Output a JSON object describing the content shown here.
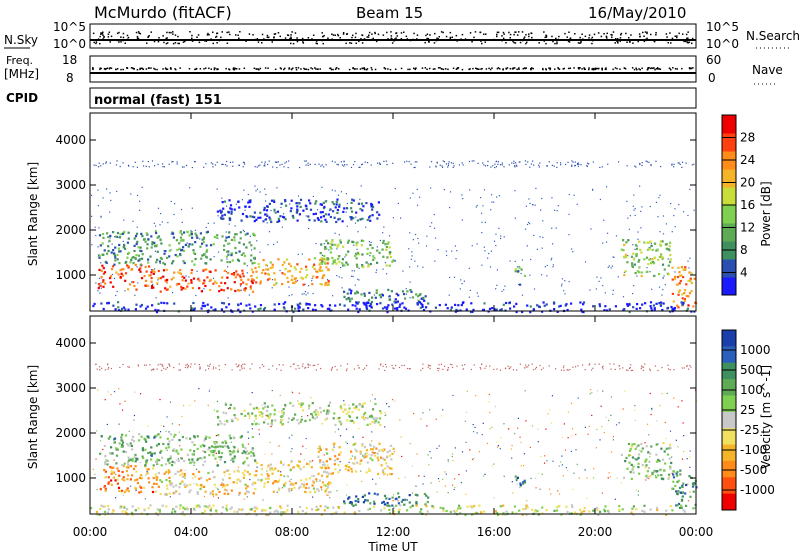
{
  "header": {
    "station": "McMurdo (fitACF)",
    "beam": "Beam 15",
    "date": "16/May/2010"
  },
  "noise_panel": {
    "left_label": "N.Sky",
    "left_ticks": [
      "10^5",
      "10^0"
    ],
    "right_ticks": [
      "10^5",
      "10^0"
    ],
    "right_label": "N.Search"
  },
  "freq_panel": {
    "left_label_1": "Freq.",
    "left_label_2": "[MHz]",
    "left_ticks": [
      "18",
      "8"
    ],
    "right_ticks": [
      "60",
      "0"
    ],
    "right_label": "Nave"
  },
  "cpid_panel": {
    "label": "CPID",
    "value": "normal (fast) 151"
  },
  "chart_data": [
    {
      "type": "heatmap",
      "parameter": "Power",
      "ylabel": "Slant Range [km]",
      "ylim": [
        200,
        4600
      ],
      "yticks": [
        1000,
        2000,
        3000,
        4000
      ],
      "xlim": [
        "00:00",
        "24:00"
      ],
      "colorbar": {
        "label": "Power [dB]",
        "tick_labels": [
          "4",
          "8",
          "12",
          "16",
          "20",
          "24",
          "28"
        ],
        "range": [
          0,
          32
        ],
        "colors": [
          "#1a1aff",
          "#2a4fb0",
          "#3f8f5f",
          "#5faa55",
          "#7fd050",
          "#c8dc3a",
          "#f4b428",
          "#ff8c1a",
          "#ff4010",
          "#ee0000"
        ]
      },
      "regions": [
        {
          "t_start": 0.3,
          "t_end": 2.5,
          "range_lo": 700,
          "range_hi": 1250,
          "level": 0.85
        },
        {
          "t_start": 2.5,
          "t_end": 6.5,
          "range_lo": 650,
          "range_hi": 1150,
          "level": 0.8
        },
        {
          "t_start": 6.5,
          "t_end": 9.5,
          "range_lo": 800,
          "range_hi": 1400,
          "level": 0.65
        },
        {
          "t_start": 9.0,
          "t_end": 12.0,
          "range_lo": 1200,
          "range_hi": 1800,
          "level": 0.4
        },
        {
          "t_start": 0.3,
          "t_end": 6.5,
          "range_lo": 1250,
          "range_hi": 2000,
          "level": 0.3
        },
        {
          "t_start": 5.0,
          "t_end": 11.5,
          "range_lo": 2200,
          "range_hi": 2700,
          "level": 0.12
        },
        {
          "t_start": 10.0,
          "t_end": 13.5,
          "range_lo": 400,
          "range_hi": 700,
          "level": 0.2
        },
        {
          "t_start": 16.8,
          "t_end": 17.2,
          "range_lo": 800,
          "range_hi": 1200,
          "level": 0.35
        },
        {
          "t_start": 21.0,
          "t_end": 23.0,
          "range_lo": 1000,
          "range_hi": 1800,
          "level": 0.45
        },
        {
          "t_start": 23.0,
          "t_end": 24.0,
          "range_lo": 300,
          "range_hi": 1200,
          "level": 0.75
        },
        {
          "t_start": 0.0,
          "t_end": 24.0,
          "range_lo": 200,
          "range_hi": 420,
          "level": 0.05
        }
      ]
    },
    {
      "type": "heatmap",
      "parameter": "Velocity",
      "ylabel": "Slant Range [km]",
      "ylim": [
        200,
        4600
      ],
      "yticks": [
        1000,
        2000,
        3000,
        4000
      ],
      "xlim": [
        "00:00",
        "24:00"
      ],
      "xtick_labels": [
        "00:00",
        "04:00",
        "08:00",
        "12:00",
        "16:00",
        "20:00",
        "00:00"
      ],
      "xlabel": "Time UT",
      "colorbar": {
        "label": "Velocity [m s^-1]",
        "tick_labels": [
          "1000",
          "500",
          "100",
          "25",
          "-25",
          "-100",
          "-500",
          "-1000"
        ],
        "colors": [
          "#1a3faa",
          "#2a5fbb",
          "#3f8f5f",
          "#5faa55",
          "#7fd050",
          "#c8c8c8",
          "#f0e060",
          "#f4b428",
          "#ff8c1a",
          "#ff5010",
          "#ee0000"
        ]
      },
      "regions": [
        {
          "t_start": 0.3,
          "t_end": 2.5,
          "range_lo": 700,
          "range_hi": 1300,
          "level": 0.75
        },
        {
          "t_start": 2.5,
          "t_end": 6.5,
          "range_lo": 650,
          "range_hi": 1200,
          "level": 0.62
        },
        {
          "t_start": 6.5,
          "t_end": 9.5,
          "range_lo": 700,
          "range_hi": 1400,
          "level": 0.6
        },
        {
          "t_start": 9.0,
          "t_end": 12.0,
          "range_lo": 1100,
          "range_hi": 1800,
          "level": 0.62
        },
        {
          "t_start": 0.3,
          "t_end": 6.5,
          "range_lo": 1300,
          "range_hi": 2000,
          "level": 0.35
        },
        {
          "t_start": 5.0,
          "t_end": 11.5,
          "range_lo": 2200,
          "range_hi": 2700,
          "level": 0.45
        },
        {
          "t_start": 10.0,
          "t_end": 13.5,
          "range_lo": 400,
          "range_hi": 700,
          "level": 0.15
        },
        {
          "t_start": 16.8,
          "t_end": 17.2,
          "range_lo": 800,
          "range_hi": 1200,
          "level": 0.15
        },
        {
          "t_start": 21.0,
          "t_end": 23.0,
          "range_lo": 1000,
          "range_hi": 1800,
          "level": 0.4
        },
        {
          "t_start": 23.0,
          "t_end": 24.0,
          "range_lo": 300,
          "range_hi": 1200,
          "level": 0.25
        },
        {
          "t_start": 0.0,
          "t_end": 24.0,
          "range_lo": 200,
          "range_hi": 420,
          "level": 0.5
        }
      ]
    }
  ]
}
